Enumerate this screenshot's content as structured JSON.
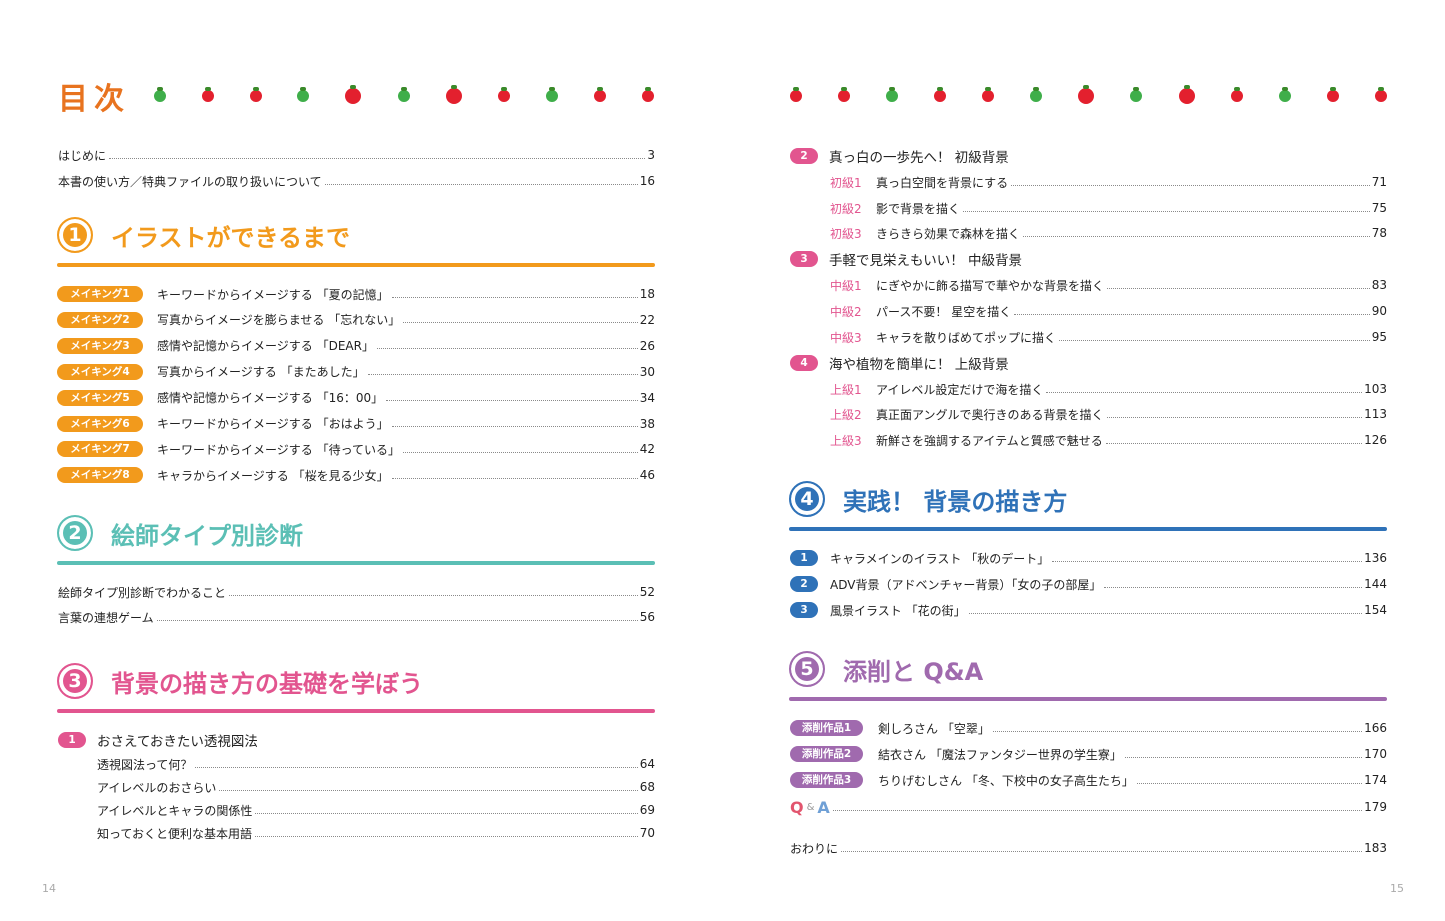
{
  "title": "目次",
  "colors": {
    "title": "#e8731f",
    "sec1": "#f29a1c",
    "sec2": "#5bbfb5",
    "sec3": "#e2558f",
    "sec4": "#2f72b8",
    "sec5": "#a06aae",
    "tomato_red": "#e3202e",
    "tomato_green": "#3fae4a"
  },
  "tomatoes_left": [
    "green",
    "red",
    "red",
    "green",
    "red",
    "green",
    "red",
    "red",
    "green",
    "red",
    "red"
  ],
  "tomatoes_right": [
    "red",
    "red",
    "green",
    "red",
    "red",
    "green",
    "red",
    "green",
    "red",
    "red",
    "green",
    "red",
    "red"
  ],
  "intro": [
    {
      "title": "はじめに",
      "page": "3"
    },
    {
      "title": "本書の使い方／特典ファイルの取り扱いについて",
      "page": "16"
    }
  ],
  "sec1": {
    "num": "1",
    "title": "イラストができるまで",
    "items": [
      {
        "badge": "メイキング1",
        "title": "キーワードからイメージする 「夏の記憶」",
        "page": "18"
      },
      {
        "badge": "メイキング2",
        "title": "写真からイメージを膨らませる 「忘れない」",
        "page": "22"
      },
      {
        "badge": "メイキング3",
        "title": "感情や記憶からイメージする 「DEAR」",
        "page": "26"
      },
      {
        "badge": "メイキング4",
        "title": "写真からイメージする 「またあした」",
        "page": "30"
      },
      {
        "badge": "メイキング5",
        "title": "感情や記憶からイメージする 「16：00」",
        "page": "34"
      },
      {
        "badge": "メイキング6",
        "title": "キーワードからイメージする 「おはよう」",
        "page": "38"
      },
      {
        "badge": "メイキング7",
        "title": "キーワードからイメージする 「待っている」",
        "page": "42"
      },
      {
        "badge": "メイキング8",
        "title": "キャラからイメージする 「桜を見る少女」",
        "page": "46"
      }
    ]
  },
  "sec2": {
    "num": "2",
    "title": "絵師タイプ別診断",
    "items": [
      {
        "title": "絵師タイプ別診断でわかること",
        "page": "52"
      },
      {
        "title": "言葉の連想ゲーム",
        "page": "56"
      }
    ]
  },
  "sec3": {
    "num": "3",
    "title": "背景の描き方の基礎を学ぼう",
    "parts": [
      {
        "num": "1",
        "title": "おさえておきたい透視図法",
        "items": [
          {
            "title": "透視図法って何？",
            "page": "64"
          },
          {
            "title": "アイレベルのおさらい",
            "page": "68"
          },
          {
            "title": "アイレベルとキャラの関係性",
            "page": "69"
          },
          {
            "title": "知っておくと便利な基本用語",
            "page": "70"
          }
        ]
      },
      {
        "num": "2",
        "title": "真っ白の一歩先へ！ 初級背景",
        "items": [
          {
            "label": "初級1",
            "title": "真っ白空間を背景にする",
            "page": "71"
          },
          {
            "label": "初級2",
            "title": "影で背景を描く",
            "page": "75"
          },
          {
            "label": "初級3",
            "title": "きらきら効果で森林を描く",
            "page": "78"
          }
        ]
      },
      {
        "num": "3",
        "title": "手軽で見栄えもいい！ 中級背景",
        "items": [
          {
            "label": "中級1",
            "title": "にぎやかに飾る描写で華やかな背景を描く",
            "page": "83"
          },
          {
            "label": "中級2",
            "title": "パース不要！ 星空を描く",
            "page": "90"
          },
          {
            "label": "中級3",
            "title": "キャラを散りばめてポップに描く",
            "page": "95"
          }
        ]
      },
      {
        "num": "4",
        "title": "海や植物を簡単に！ 上級背景",
        "items": [
          {
            "label": "上級1",
            "title": "アイレベル設定だけで海を描く",
            "page": "103"
          },
          {
            "label": "上級2",
            "title": "真正面アングルで奥行きのある背景を描く",
            "page": "113"
          },
          {
            "label": "上級3",
            "title": "新鮮さを強調するアイテムと質感で魅せる",
            "page": "126"
          }
        ]
      }
    ]
  },
  "sec4": {
    "num": "4",
    "title": "実践！ 背景の描き方",
    "items": [
      {
        "num": "1",
        "title": "キャラメインのイラスト 「秋のデート」",
        "page": "136"
      },
      {
        "num": "2",
        "title": "ADV背景（アドベンチャー背景）「女の子の部屋」",
        "page": "144"
      },
      {
        "num": "3",
        "title": "風景イラスト 「花の街」",
        "page": "154"
      }
    ]
  },
  "sec5": {
    "num": "5",
    "title": "添削と Q&A",
    "items": [
      {
        "badge": "添削作品1",
        "title": "剣しろさん 「空翠」",
        "page": "166"
      },
      {
        "badge": "添削作品2",
        "title": "結衣さん 「魔法ファンタジー世界の学生寮」",
        "page": "170"
      },
      {
        "badge": "添削作品3",
        "title": "ちりげむしさん 「冬、下校中の女子高生たち」",
        "page": "174"
      }
    ],
    "qa": {
      "q": "Q",
      "amp": "&",
      "a": "A",
      "page": "179"
    }
  },
  "outro": {
    "title": "おわりに",
    "page": "183"
  },
  "folio_left": "14",
  "folio_right": "15"
}
